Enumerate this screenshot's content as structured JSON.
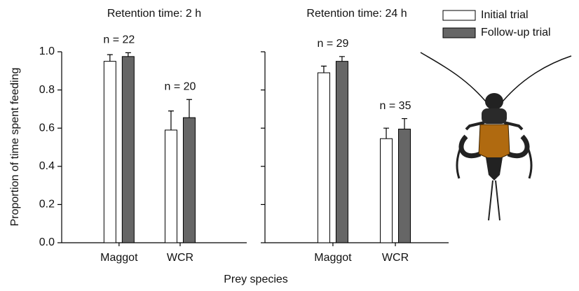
{
  "chart_data": [
    {
      "type": "bar",
      "title": "Retention time: 2 h",
      "categories": [
        "Maggot",
        "WCR"
      ],
      "annotations": [
        "n = 22",
        "n = 20"
      ],
      "series": [
        {
          "name": "Initial trial",
          "color": "#ffffff",
          "values": [
            0.95,
            0.59
          ],
          "errors": [
            0.035,
            0.1
          ]
        },
        {
          "name": "Follow-up trial",
          "color": "#666666",
          "values": [
            0.975,
            0.655
          ],
          "errors": [
            0.02,
            0.095
          ]
        }
      ],
      "ylabel": "Proportion of time spent feeding",
      "xlabel": "Prey species",
      "ylim": [
        0,
        1
      ],
      "yticks": [
        {
          "value": 0,
          "label": "0.0"
        },
        0.2,
        0.4,
        0.6,
        0.8,
        {
          "value": 1,
          "label": "1.0"
        }
      ]
    },
    {
      "type": "bar",
      "title": "Retention time: 24 h",
      "categories": [
        "Maggot",
        "WCR"
      ],
      "annotations": [
        "n = 29",
        "n = 35"
      ],
      "series": [
        {
          "name": "Initial trial",
          "color": "#ffffff",
          "values": [
            0.89,
            0.545
          ],
          "errors": [
            0.035,
            0.055
          ]
        },
        {
          "name": "Follow-up trial",
          "color": "#666666",
          "values": [
            0.95,
            0.595
          ],
          "errors": [
            0.025,
            0.055
          ]
        }
      ],
      "ylim": [
        0,
        1
      ],
      "yticks": [
        0,
        0.2,
        0.4,
        0.6,
        0.8,
        1
      ]
    }
  ]
}
